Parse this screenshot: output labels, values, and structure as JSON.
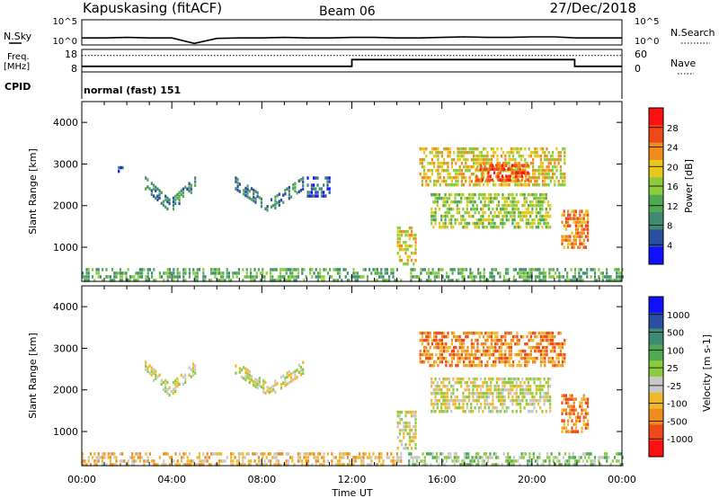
{
  "header": {
    "station": "Kapuskasing (fitACF)",
    "beam": "Beam 06",
    "date": "27/Dec/2018"
  },
  "noise_panel": {
    "left_label": "N.Sky",
    "right_label": "N.Search",
    "left_ticks": [
      "10^5",
      "10^0"
    ],
    "right_ticks": [
      "10^5",
      "10^0"
    ]
  },
  "freq_panel": {
    "left_label_1": "Freq.",
    "left_label_2": "[MHz]",
    "right_label": "Nave",
    "left_ticks": [
      "18",
      "8"
    ],
    "right_ticks": [
      "60",
      "0"
    ]
  },
  "cpid": {
    "label": "CPID",
    "value": "normal (fast) 151"
  },
  "colors": {
    "power_scale": [
      "#1010ff",
      "#2a4ea0",
      "#3f8a72",
      "#4faa52",
      "#8ccc3c",
      "#e8c81c",
      "#f08c1c",
      "#f04818",
      "#ff1010"
    ],
    "velocity_scale": [
      "#ff1010",
      "#f04818",
      "#f08c1c",
      "#f0b82c",
      "#c8c8c8",
      "#8ccc3c",
      "#4faa52",
      "#3f8a72",
      "#2a4ea0",
      "#1010ff"
    ]
  },
  "chart_data": [
    {
      "type": "line",
      "name": "noise",
      "x": [
        0,
        1,
        2,
        3,
        4,
        5,
        6,
        7,
        8,
        9,
        10,
        11,
        12,
        13,
        14,
        15,
        16,
        17,
        18,
        19,
        20,
        21,
        22,
        23,
        24
      ],
      "y_log10": [
        1.4,
        1.4,
        1.5,
        1.4,
        1.4,
        0.3,
        1.3,
        1.4,
        1.4,
        1.5,
        1.4,
        1.4,
        1.5,
        1.5,
        1.4,
        1.4,
        1.5,
        1.6,
        1.5,
        1.5,
        1.6,
        1.6,
        1.4,
        1.4,
        1.4
      ],
      "ylim": [
        0,
        5
      ]
    },
    {
      "type": "line",
      "name": "frequency_nave",
      "x": [
        0,
        12,
        12,
        21.9,
        21.9,
        24
      ],
      "freq_mhz": [
        10.5,
        10.5,
        13.5,
        13.5,
        10.5,
        10.5
      ],
      "nave": [
        44,
        44,
        44,
        44,
        44,
        44
      ],
      "ylim_freq": [
        8,
        18
      ],
      "ylim_nave": [
        0,
        60
      ]
    },
    {
      "type": "heatmap",
      "name": "power",
      "ylabel": "Slant Range [km]",
      "colorbar_label": "Power [dB]",
      "colorbar_ticks": [
        "28",
        "24",
        "20",
        "16",
        "12",
        "8",
        "4"
      ],
      "xlim": [
        0,
        24
      ],
      "ylim": [
        180,
        4500
      ],
      "xticks": [
        "00:00",
        "04:00",
        "08:00",
        "12:00",
        "16:00",
        "20:00",
        "00:00"
      ],
      "yticks": [
        "1000",
        "2000",
        "3000",
        "4000"
      ],
      "features": [
        {
          "t0": 1.6,
          "t1": 1.8,
          "r0": 2750,
          "r1": 2950,
          "level": 1
        },
        {
          "t0": 2.8,
          "t1": 5.0,
          "r0": 2000,
          "r1": 2550,
          "level": 2,
          "shape": "v"
        },
        {
          "t0": 6.8,
          "t1": 9.8,
          "r0": 2000,
          "r1": 2550,
          "level": 2,
          "shape": "v"
        },
        {
          "t0": 10.0,
          "t1": 11.0,
          "r0": 2200,
          "r1": 2700,
          "level": 1
        },
        {
          "t0": 0.0,
          "t1": 14.2,
          "r0": 200,
          "r1": 500,
          "level": 3,
          "scatter": true
        },
        {
          "t0": 14.0,
          "t1": 14.8,
          "r0": 600,
          "r1": 1500,
          "level": 5
        },
        {
          "t0": 15.0,
          "t1": 21.5,
          "r0": 2500,
          "r1": 3400,
          "level": 5
        },
        {
          "t0": 17.5,
          "t1": 19.8,
          "r0": 2600,
          "r1": 3000,
          "level": 7
        },
        {
          "t0": 15.5,
          "t1": 20.8,
          "r0": 1500,
          "r1": 2300,
          "level": 4
        },
        {
          "t0": 21.3,
          "t1": 22.5,
          "r0": 1000,
          "r1": 1900,
          "level": 6
        },
        {
          "t0": 14.5,
          "t1": 24.0,
          "r0": 200,
          "r1": 500,
          "level": 3,
          "scatter": true
        }
      ]
    },
    {
      "type": "heatmap",
      "name": "velocity",
      "ylabel": "Slant Range [km]",
      "colorbar_label": "Velocity [m s-1]",
      "colorbar_ticks": [
        "1000",
        "500",
        "100",
        "25",
        "-25",
        "-100",
        "-500",
        "-1000"
      ],
      "xlabel": "Time UT",
      "xlim": [
        0,
        24
      ],
      "ylim": [
        180,
        4500
      ],
      "xticks": [
        "00:00",
        "04:00",
        "08:00",
        "12:00",
        "16:00",
        "20:00",
        "00:00"
      ],
      "yticks": [
        "1000",
        "2000",
        "3000",
        "4000"
      ],
      "features": [
        {
          "t0": 2.8,
          "t1": 5.0,
          "r0": 2000,
          "r1": 2550,
          "level": 4,
          "shape": "v"
        },
        {
          "t0": 6.8,
          "t1": 9.8,
          "r0": 2000,
          "r1": 2550,
          "level": 4,
          "shape": "v"
        },
        {
          "t0": 0.0,
          "t1": 14.2,
          "r0": 200,
          "r1": 500,
          "level": 3,
          "scatter": true
        },
        {
          "t0": 14.0,
          "t1": 14.8,
          "r0": 600,
          "r1": 1500,
          "level": 4
        },
        {
          "t0": 15.0,
          "t1": 21.5,
          "r0": 2600,
          "r1": 3400,
          "level": 2
        },
        {
          "t0": 15.5,
          "t1": 20.8,
          "r0": 1500,
          "r1": 2300,
          "level": 4
        },
        {
          "t0": 21.3,
          "t1": 22.5,
          "r0": 1000,
          "r1": 1900,
          "level": 2
        },
        {
          "t0": 14.5,
          "t1": 24.0,
          "r0": 200,
          "r1": 500,
          "level": 5,
          "scatter": true
        }
      ]
    }
  ]
}
